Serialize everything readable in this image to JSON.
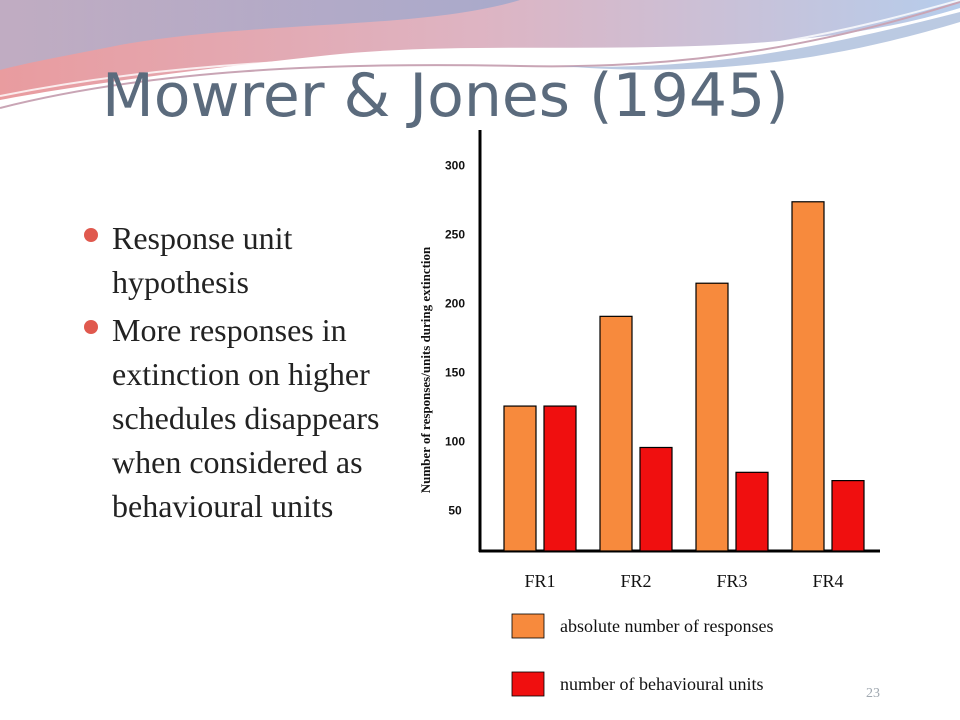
{
  "slide": {
    "title": "Mowrer & Jones (1945)",
    "bullets": [
      "Response unit hypothesis",
      "More responses in extinction on higher schedules disappears when considered as behavioural units"
    ],
    "page_number": "23",
    "bullet_color": "#e0594e",
    "title_color": "#5b6b7d"
  },
  "chart_data": {
    "type": "bar",
    "categories": [
      "FR1",
      "FR2",
      "FR3",
      "FR4"
    ],
    "series": [
      {
        "name": "absolute number of responses",
        "color": "#f78a3d",
        "values": [
          125,
          190,
          214,
          273
        ]
      },
      {
        "name": "number of behavioural units",
        "color": "#f00f0f",
        "values": [
          125,
          95,
          77,
          71
        ]
      }
    ],
    "ylabel": "Number of responses/units during extinction",
    "yticks": [
      50,
      100,
      150,
      200,
      250,
      300
    ],
    "ylim": [
      20,
      325
    ],
    "legend_position": "bottom",
    "grid": false
  }
}
